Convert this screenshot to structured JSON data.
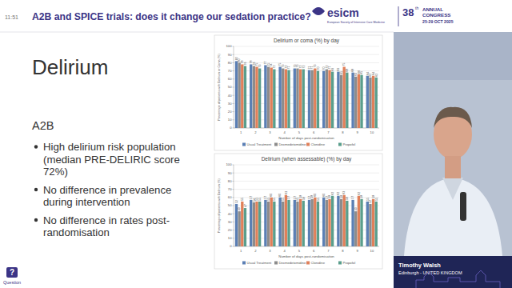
{
  "header": {
    "time": "11:51",
    "title": "A2B and SPICE trials: does it change our sedation practice?"
  },
  "logo": {
    "name": "esicm",
    "society": "European Society of Intensive Care Medicine",
    "edition": "38",
    "edition_suffix": "th",
    "line1": "ANNUAL",
    "line2": "CONGRESS",
    "dates": "25-29 OCT 2025"
  },
  "slide": {
    "heading": "Delirium",
    "subheading": "A2B",
    "bullets": [
      "High delirium risk population (median PRE-DELIRIC score 72%)",
      "No difference in prevalence during intervention",
      "No difference in rates post-randomisation"
    ]
  },
  "speaker": {
    "name": "Timothy Walsh",
    "affiliation": "Edinburgh - UNITED KINGDOM"
  },
  "footer": {
    "question_icon": "?",
    "question_label": "Question"
  },
  "chart_data": [
    {
      "type": "bar",
      "title": "Delirium or coma (%) by day",
      "x_label": "Number of days post-randomisation",
      "y_label": "Percentage of patients with Delirium or Coma (%)",
      "categories": [
        "1",
        "2",
        "3",
        "4",
        "5",
        "6",
        "7",
        "8",
        "9",
        "10"
      ],
      "series": [
        {
          "name": "Usual Treatment",
          "color": "#5b7fb4",
          "values": [
            82,
            78,
            77,
            75,
            73,
            71,
            70,
            69,
            68,
            64
          ]
        },
        {
          "name": "Dexmedetomidine",
          "color": "#8c8c8c",
          "values": [
            80,
            76,
            75,
            73,
            73,
            71,
            72,
            65,
            63,
            62
          ]
        },
        {
          "name": "Clonidine",
          "color": "#e0805a",
          "values": [
            78,
            75,
            74,
            72,
            72,
            73,
            71,
            75,
            66,
            64
          ]
        },
        {
          "name": "Propofol",
          "color": "#5a9e8c",
          "values": [
            76,
            73,
            72,
            71,
            72,
            70,
            69,
            68,
            65,
            62
          ]
        }
      ],
      "ylim": [
        0,
        100
      ],
      "yticks": [
        0,
        10,
        20,
        30,
        40,
        50,
        60,
        70,
        80,
        90,
        100
      ],
      "grid": true,
      "data_labels": true,
      "legend": "bottom"
    },
    {
      "type": "bar",
      "title": "Delirium (when assessable) (%) by day",
      "x_label": "Number of days post-randomisation",
      "y_label": "Percentage of patients with Delirium (%)",
      "categories": [
        "1",
        "2",
        "3",
        "4",
        "5",
        "6",
        "7",
        "8",
        "9",
        "10"
      ],
      "series": [
        {
          "name": "Usual Treatment",
          "color": "#5b7fb4",
          "values": [
            52,
            57,
            57,
            60,
            57,
            57,
            60,
            62,
            57,
            55
          ]
        },
        {
          "name": "Dexmedetomidine",
          "color": "#8c8c8c",
          "values": [
            43,
            54,
            55,
            55,
            55,
            58,
            57,
            58,
            43,
            52
          ]
        },
        {
          "name": "Clonidine",
          "color": "#e0805a",
          "values": [
            55,
            55,
            60,
            63,
            58,
            60,
            58,
            63,
            62,
            58
          ]
        },
        {
          "name": "Propofol",
          "color": "#5a9e8c",
          "values": [
            47,
            55,
            55,
            57,
            56,
            55,
            62,
            56,
            58,
            55
          ]
        }
      ],
      "ylim": [
        0,
        100
      ],
      "yticks": [
        0,
        10,
        20,
        30,
        40,
        50,
        60,
        70,
        80,
        90,
        100
      ],
      "grid": true,
      "data_labels": true,
      "legend": "bottom"
    }
  ]
}
